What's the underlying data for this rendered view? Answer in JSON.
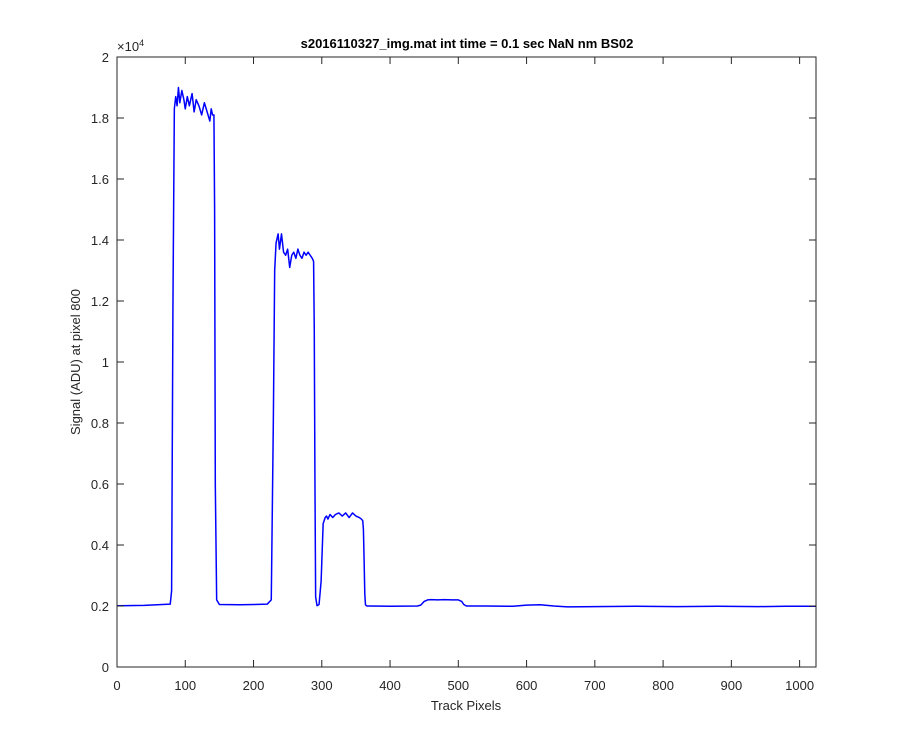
{
  "chart_data": {
    "type": "line",
    "title": "s2016110327_img.mat int time = 0.1 sec  NaN nm BS02",
    "xlabel": "Track Pixels",
    "ylabel": "Signal (ADU) at pixel 800",
    "xlim": [
      0,
      1024
    ],
    "ylim": [
      0,
      20000
    ],
    "xticks": [
      0,
      100,
      200,
      300,
      400,
      500,
      600,
      700,
      800,
      900,
      1000
    ],
    "xtick_labels": [
      "0",
      "100",
      "200",
      "300",
      "400",
      "500",
      "600",
      "700",
      "800",
      "900",
      "1000"
    ],
    "yticks": [
      0,
      2000,
      4000,
      6000,
      8000,
      10000,
      12000,
      14000,
      16000,
      18000,
      20000
    ],
    "ytick_labels": [
      "0",
      "0.2",
      "0.4",
      "0.6",
      "0.8",
      "1",
      "1.2",
      "1.4",
      "1.6",
      "1.8",
      "2"
    ],
    "y_exponent_base": "×10",
    "y_exponent_power": "4",
    "grid": false,
    "legend": "none",
    "series_color": "#0000ff",
    "series": [
      {
        "x": [
          0,
          40,
          78,
          80,
          82,
          84,
          86,
          88,
          90,
          92,
          95,
          98,
          100,
          103,
          106,
          110,
          113,
          116,
          120,
          124,
          128,
          132,
          136,
          138,
          140,
          142,
          143,
          144,
          146,
          150,
          180,
          220,
          226,
          229,
          231,
          233,
          236,
          238,
          241,
          244,
          247,
          250,
          253,
          256,
          259,
          262,
          265,
          268,
          271,
          274,
          277,
          280,
          283,
          286,
          288,
          289,
          290,
          291,
          293,
          296,
          299,
          302,
          305,
          307,
          309,
          312,
          316,
          320,
          325,
          330,
          335,
          340,
          345,
          350,
          355,
          358,
          360,
          361,
          362,
          363,
          364,
          366,
          370,
          400,
          440,
          445,
          450,
          455,
          460,
          470,
          480,
          490,
          500,
          505,
          508,
          512,
          540,
          580,
          600,
          620,
          640,
          660,
          700,
          760,
          820,
          880,
          940,
          980,
          1024
        ],
        "y": [
          2010,
          2020,
          2060,
          2500,
          12000,
          18300,
          18700,
          18400,
          19000,
          18500,
          18900,
          18600,
          18300,
          18700,
          18400,
          18800,
          18200,
          18600,
          18400,
          18100,
          18500,
          18200,
          17900,
          18300,
          18100,
          18100,
          15000,
          6000,
          2200,
          2050,
          2040,
          2060,
          2200,
          8000,
          13000,
          13900,
          14200,
          13700,
          14200,
          13600,
          13500,
          13700,
          13100,
          13500,
          13600,
          13400,
          13700,
          13500,
          13400,
          13600,
          13500,
          13600,
          13500,
          13400,
          13300,
          11000,
          6000,
          2300,
          2010,
          2050,
          2800,
          4700,
          4900,
          4950,
          4850,
          5000,
          4900,
          5000,
          5050,
          4950,
          5050,
          4900,
          5050,
          4950,
          4900,
          4850,
          4800,
          4500,
          3500,
          2400,
          2040,
          2000,
          2000,
          1990,
          2000,
          2030,
          2150,
          2200,
          2210,
          2200,
          2210,
          2200,
          2200,
          2150,
          2050,
          2000,
          2000,
          1990,
          2030,
          2040,
          2000,
          1970,
          1980,
          1990,
          1980,
          1990,
          1980,
          1990,
          1990
        ]
      }
    ]
  }
}
